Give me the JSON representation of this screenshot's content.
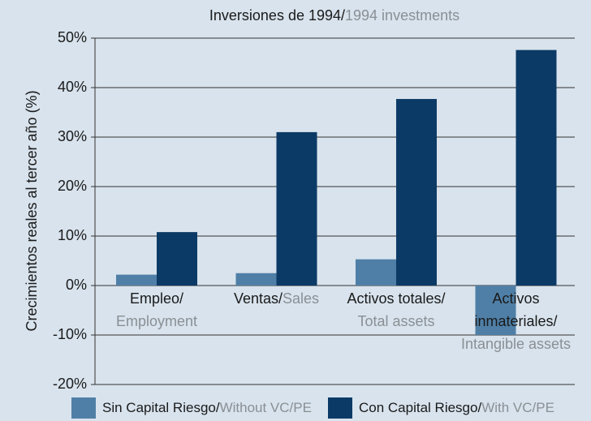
{
  "chart_data": {
    "type": "bar",
    "title": "Inversiones de 1994/",
    "title_en": "1994 investments",
    "ylabel": "Crecimientos reales al tercer año (%)",
    "categories": [
      "Empleo/",
      "Ventas/",
      "Activos totales/",
      "Activos inmateriales/"
    ],
    "categories_en": [
      "Employment",
      "Sales",
      "Total assets",
      "Intangible assets"
    ],
    "series": [
      {
        "name": "Sin Capital Riesgo/",
        "name_en": "Without VC/PE",
        "color": "#4f7fa6",
        "values": [
          2.2,
          2.5,
          5.3,
          -10
        ]
      },
      {
        "name": "Con Capital Riesgo/",
        "name_en": "With VC/PE",
        "color": "#0c3a66",
        "values": [
          10.8,
          31,
          37.7,
          47.6
        ]
      }
    ],
    "ylim": [
      -20,
      50
    ],
    "yticks": [
      {
        "value": -20,
        "label": "-20%"
      },
      {
        "value": -10,
        "label": "-10%"
      },
      {
        "value": 0,
        "label": "0%"
      },
      {
        "value": 10,
        "label": "10%"
      },
      {
        "value": 20,
        "label": "20%"
      },
      {
        "value": 30,
        "label": "30%"
      },
      {
        "value": 40,
        "label": "40%"
      },
      {
        "value": 50,
        "label": "50%"
      }
    ],
    "grid": true
  }
}
